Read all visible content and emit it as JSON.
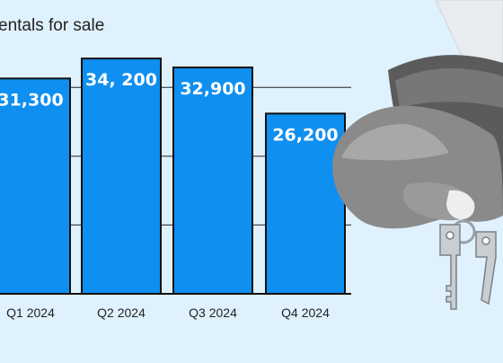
{
  "chart_data": {
    "type": "bar",
    "title": "entals for sale",
    "categories": [
      "Q1 2024",
      "Q2 2024",
      "Q3 2024",
      "Q4 2024"
    ],
    "values": [
      31300,
      34200,
      32900,
      26200
    ],
    "value_labels": [
      "31,300",
      "34, 200",
      "32,900",
      "26,200"
    ],
    "ylim": [
      0,
      36000
    ],
    "gridlines": [
      10000,
      20000,
      30000
    ],
    "grid": true,
    "bar_color": "#0f8ff0"
  },
  "illustration": {
    "description_icon": "hand-holding-keys-icon"
  }
}
